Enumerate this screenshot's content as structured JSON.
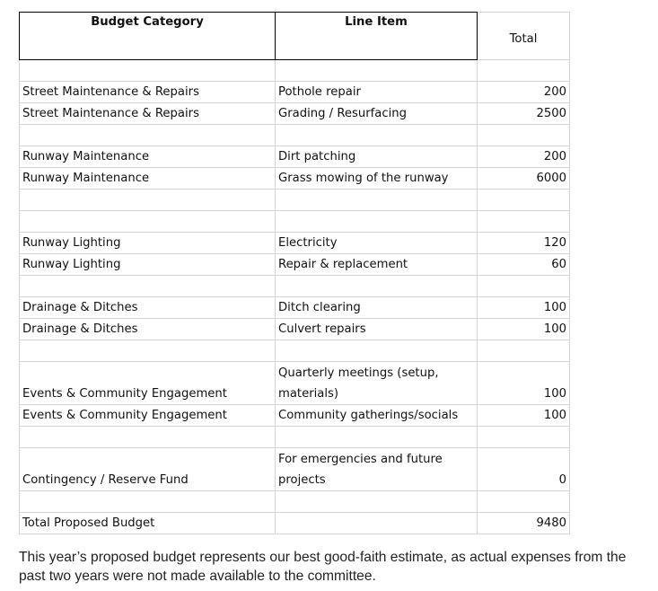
{
  "table": {
    "headers": [
      "Budget Category",
      "Line Item",
      "Total"
    ],
    "rows": [
      {
        "category": "",
        "item": "",
        "total": ""
      },
      {
        "category": "Street Maintenance & Repairs",
        "item": "Pothole repair",
        "total": "200"
      },
      {
        "category": "Street Maintenance & Repairs",
        "item": "Grading / Resurfacing",
        "total": "2500"
      },
      {
        "category": "",
        "item": "",
        "total": ""
      },
      {
        "category": "Runway Maintenance",
        "item": "Dirt patching",
        "total": "200"
      },
      {
        "category": "Runway Maintenance",
        "item": "Grass mowing of the runway",
        "total": "6000"
      },
      {
        "category": "",
        "item": "",
        "total": ""
      },
      {
        "category": "",
        "item": "",
        "total": ""
      },
      {
        "category": "Runway Lighting",
        "item": "Electricity",
        "total": "120"
      },
      {
        "category": "Runway Lighting",
        "item": "Repair & replacement",
        "total": "60"
      },
      {
        "category": "",
        "item": "",
        "total": ""
      },
      {
        "category": "Drainage & Ditches",
        "item": "Ditch clearing",
        "total": "100"
      },
      {
        "category": "Drainage & Ditches",
        "item": "Culvert repairs",
        "total": "100"
      },
      {
        "category": "",
        "item": "",
        "total": ""
      },
      {
        "category": "Events & Community Engagement",
        "item": "Quarterly meetings (setup, materials)",
        "total": "100",
        "tall": true
      },
      {
        "category": "Events & Community Engagement",
        "item": "Community gatherings/socials",
        "total": "100"
      },
      {
        "category": "",
        "item": "",
        "total": ""
      },
      {
        "category": "Contingency / Reserve Fund",
        "item": "For emergencies and future projects",
        "total": "0",
        "tall": true
      },
      {
        "category": "",
        "item": "",
        "total": ""
      },
      {
        "category": "Total Proposed Budget",
        "item": "",
        "total": "9480"
      }
    ]
  },
  "note": "This year’s proposed budget represents our best good-faith estimate, as actual expenses from the past two years were not made available to the committee."
}
